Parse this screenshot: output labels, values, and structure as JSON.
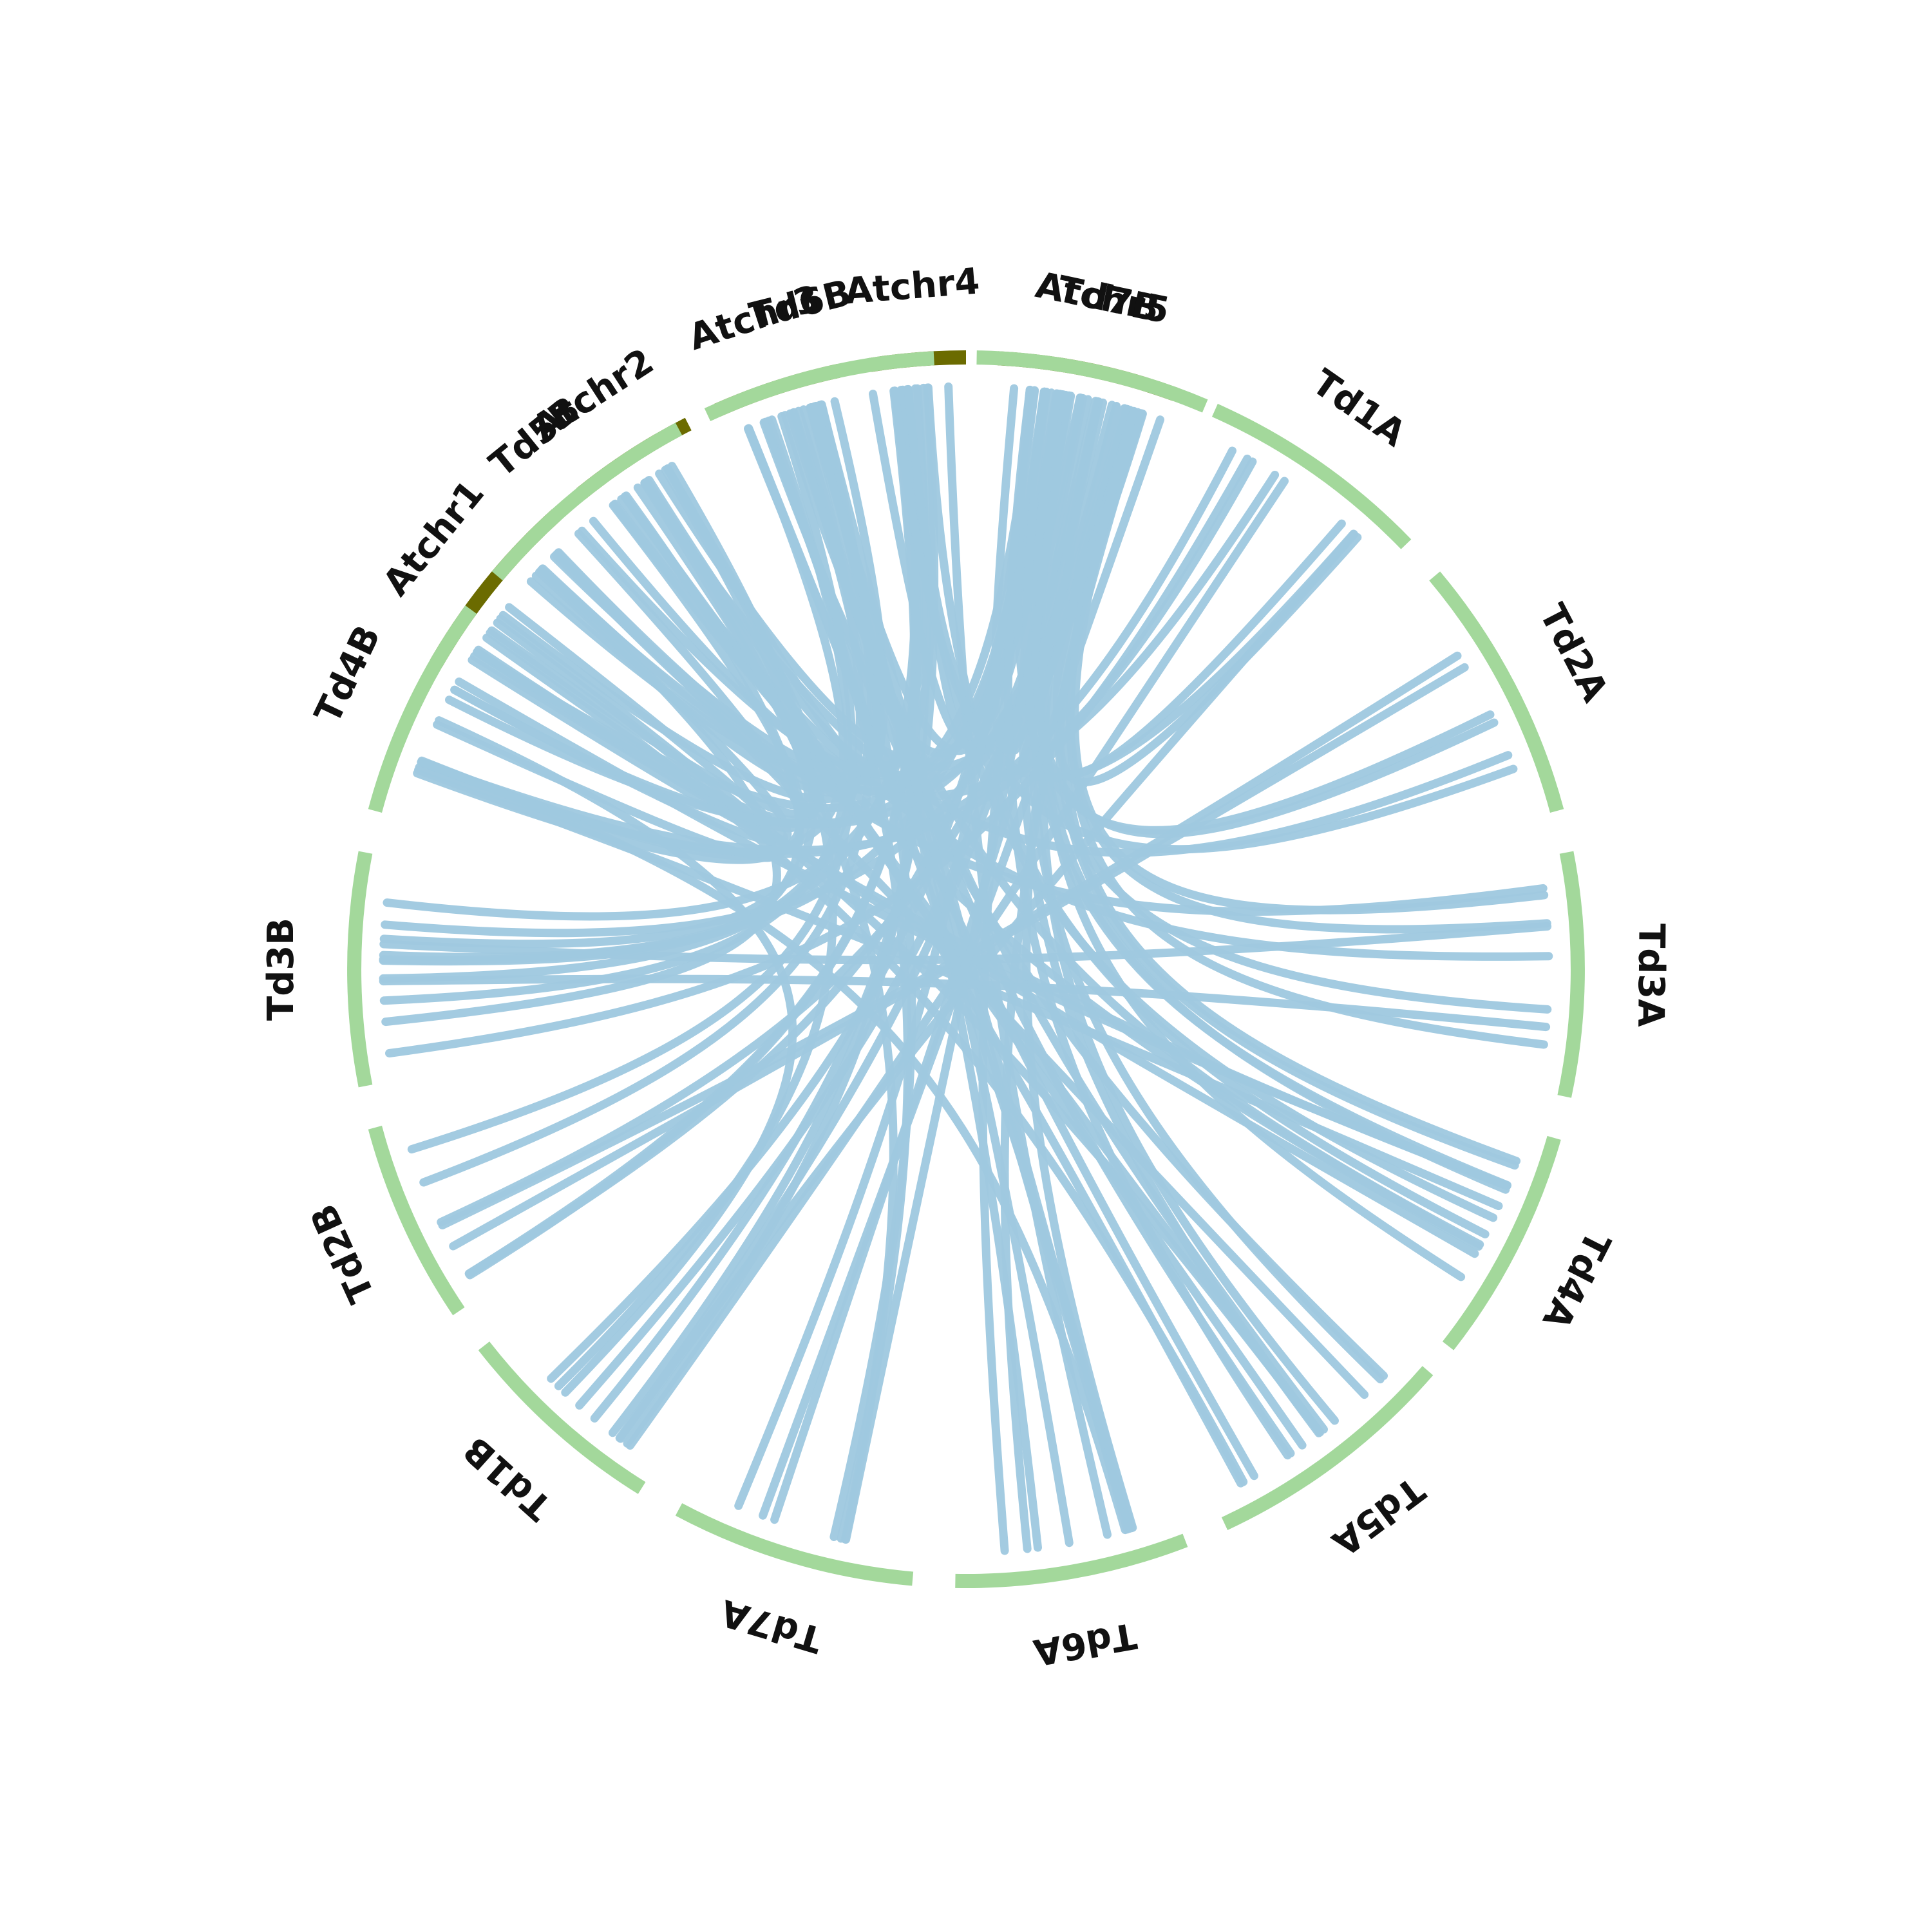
{
  "chart_data": {
    "type": "circos",
    "colors": {
      "arabidopsis": "#6b6b00",
      "durum": "#a3d89b",
      "link": "#9fc9e0",
      "label": "#111111",
      "background": "#ffffff"
    },
    "segments": [
      {
        "name": "Atchr1",
        "group": "arabidopsis",
        "start_deg": 300,
        "end_deg": 318
      },
      {
        "name": "Atchr2",
        "group": "arabidopsis",
        "start_deg": 321,
        "end_deg": 333
      },
      {
        "name": "Atchr3",
        "group": "arabidopsis",
        "start_deg": 336,
        "end_deg": 348
      },
      {
        "name": "Atchr4",
        "group": "arabidopsis",
        "start_deg": 351,
        "end_deg": 360
      },
      {
        "name": "Atchr5",
        "group": "arabidopsis",
        "start_deg": 363,
        "end_deg": 380
      },
      {
        "name": "Td1A",
        "group": "durum",
        "start_deg": 384,
        "end_deg": 406
      },
      {
        "name": "Td2A",
        "group": "durum",
        "start_deg": 410,
        "end_deg": 435
      },
      {
        "name": "Td3A",
        "group": "durum",
        "start_deg": 439,
        "end_deg": 462
      },
      {
        "name": "Td4A",
        "group": "durum",
        "start_deg": 466,
        "end_deg": 488
      },
      {
        "name": "Td5A",
        "group": "durum",
        "start_deg": 491,
        "end_deg": 515
      },
      {
        "name": "Td6A",
        "group": "durum",
        "start_deg": 519,
        "end_deg": 541
      },
      {
        "name": "Td7A",
        "group": "durum",
        "start_deg": 545,
        "end_deg": 568
      },
      {
        "name": "Td1B",
        "group": "durum",
        "start_deg": 572,
        "end_deg": 592
      },
      {
        "name": "Td2B",
        "group": "durum",
        "start_deg": 596,
        "end_deg": 615
      },
      {
        "name": "Td3B",
        "group": "durum",
        "start_deg": 619,
        "end_deg": 641
      },
      {
        "name": "Td4B",
        "group": "durum",
        "start_deg": 645,
        "end_deg": 666
      },
      {
        "name": "Td5B",
        "group": "durum",
        "start_deg": 670,
        "end_deg": 692
      },
      {
        "name": "Td6B",
        "group": "durum",
        "start_deg": 695,
        "end_deg": 717
      },
      {
        "name": "Td7B",
        "group": "durum",
        "start_deg": 721,
        "end_deg": 743
      }
    ],
    "links": [
      [
        "Atchr1",
        "Td7B",
        2
      ],
      [
        "Atchr1",
        "Td6B",
        3
      ],
      [
        "Atchr1",
        "Td5B",
        2
      ],
      [
        "Atchr1",
        "Td4A",
        2
      ],
      [
        "Atchr1",
        "Td4B",
        3
      ],
      [
        "Atchr1",
        "Td5A",
        2
      ],
      [
        "Atchr1",
        "Td3B",
        1
      ],
      [
        "Atchr2",
        "Td6B",
        2
      ],
      [
        "Atchr2",
        "Td4B",
        3
      ],
      [
        "Atchr2",
        "Td5A",
        2
      ],
      [
        "Atchr2",
        "Td3A",
        1
      ],
      [
        "Atchr2",
        "Td3B",
        2
      ],
      [
        "Atchr2",
        "Td4A",
        1
      ],
      [
        "Atchr2",
        "Td7B",
        1
      ],
      [
        "Atchr3",
        "Td6A",
        3
      ],
      [
        "Atchr3",
        "Td5A",
        2
      ],
      [
        "Atchr3",
        "Td7A",
        2
      ],
      [
        "Atchr3",
        "Td3B",
        2
      ],
      [
        "Atchr3",
        "Td2B",
        1
      ],
      [
        "Atchr3",
        "Td4B",
        1
      ],
      [
        "Atchr3",
        "Td5B",
        2
      ],
      [
        "Atchr3",
        "Td7B",
        1
      ],
      [
        "Atchr4",
        "Td1B",
        3
      ],
      [
        "Atchr4",
        "Td2B",
        2
      ],
      [
        "Atchr4",
        "Td4A",
        2
      ],
      [
        "Atchr4",
        "Td3B",
        2
      ],
      [
        "Atchr4",
        "Td5B",
        1
      ],
      [
        "Atchr4",
        "Td6A",
        1
      ],
      [
        "Atchr5",
        "Td1B",
        3
      ],
      [
        "Atchr5",
        "Td2B",
        2
      ],
      [
        "Atchr5",
        "Td3A",
        3
      ],
      [
        "Atchr5",
        "Td4A",
        3
      ],
      [
        "Atchr5",
        "Td5A",
        3
      ],
      [
        "Atchr5",
        "Td6A",
        3
      ],
      [
        "Atchr5",
        "Td7A",
        2
      ],
      [
        "Atchr5",
        "Td3B",
        2
      ],
      [
        "Atchr5",
        "Td4B",
        2
      ],
      [
        "Atchr5",
        "Td5B",
        2
      ],
      [
        "Atchr5",
        "Td6B",
        3
      ],
      [
        "Atchr5",
        "Td7B",
        2
      ],
      [
        "Atchr5",
        "Td2A",
        2
      ],
      [
        "Atchr5",
        "Td1A",
        2
      ],
      [
        "Td1A",
        "Td1B",
        2
      ],
      [
        "Td1A",
        "Td5B",
        1
      ],
      [
        "Td1A",
        "Td4B",
        2
      ],
      [
        "Td1A",
        "Td6B",
        1
      ],
      [
        "Td1A",
        "Td3B",
        1
      ],
      [
        "Td2A",
        "Td2B",
        2
      ],
      [
        "Td2A",
        "Td6B",
        1
      ],
      [
        "Td2A",
        "Td5B",
        1
      ],
      [
        "Td3A",
        "Td3B",
        2
      ],
      [
        "Td3A",
        "Td7B",
        1
      ],
      [
        "Td3A",
        "Td5B",
        1
      ],
      [
        "Td4A",
        "Td4B",
        2
      ],
      [
        "Td4A",
        "Td7B",
        2
      ],
      [
        "Td4A",
        "Td6B",
        1
      ],
      [
        "Td5A",
        "Td5B",
        2
      ],
      [
        "Td5A",
        "Td6B",
        2
      ],
      [
        "Td5A",
        "Td7B",
        1
      ],
      [
        "Td6A",
        "Td6B",
        2
      ],
      [
        "Td6A",
        "Td4B",
        1
      ],
      [
        "Td7A",
        "Td7B",
        2
      ],
      [
        "Td7A",
        "Td5B",
        1
      ],
      [
        "Td1B",
        "Td4B",
        1
      ],
      [
        "Td1B",
        "Td5B",
        1
      ],
      [
        "Td2B",
        "Td6B",
        1
      ]
    ]
  }
}
